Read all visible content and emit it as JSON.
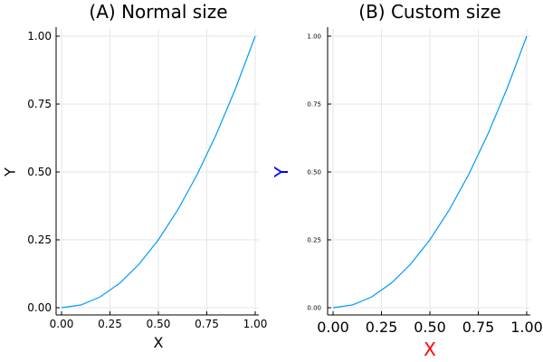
{
  "chart_data": [
    {
      "type": "line",
      "title": "(A) Normal size",
      "xlabel": "X",
      "ylabel": "Y",
      "xlim": [
        0,
        1
      ],
      "ylim": [
        0,
        1
      ],
      "xticks": [
        "0.00",
        "0.25",
        "0.50",
        "0.75",
        "1.00"
      ],
      "yticks": [
        "0.00",
        "0.25",
        "0.50",
        "0.75",
        "1.00"
      ],
      "grid": true,
      "xlabel_color": "#000000",
      "ylabel_color": "#000000",
      "series": [
        {
          "color": "#009af9",
          "x": [
            0,
            0.1,
            0.2,
            0.3,
            0.4,
            0.5,
            0.6,
            0.7,
            0.8,
            0.9,
            1.0
          ],
          "y": [
            0,
            0.01,
            0.04,
            0.09,
            0.16,
            0.25,
            0.36,
            0.49,
            0.64,
            0.81,
            1.0
          ]
        }
      ]
    },
    {
      "type": "line",
      "title": "(B) Custom size",
      "xlabel": "X",
      "ylabel": "Y",
      "xlim": [
        0,
        1
      ],
      "ylim": [
        0,
        1
      ],
      "xticks": [
        "0.00",
        "0.25",
        "0.50",
        "0.75",
        "1.00"
      ],
      "yticks": [
        "0.00",
        "0.25",
        "0.50",
        "0.75",
        "1.00"
      ],
      "grid": true,
      "xlabel_color": "#ff0000",
      "ylabel_color": "#0000ff",
      "series": [
        {
          "color": "#009af9",
          "x": [
            0,
            0.1,
            0.2,
            0.3,
            0.4,
            0.5,
            0.6,
            0.7,
            0.8,
            0.9,
            1.0
          ],
          "y": [
            0,
            0.01,
            0.04,
            0.09,
            0.16,
            0.25,
            0.36,
            0.49,
            0.64,
            0.81,
            1.0
          ]
        }
      ]
    }
  ]
}
